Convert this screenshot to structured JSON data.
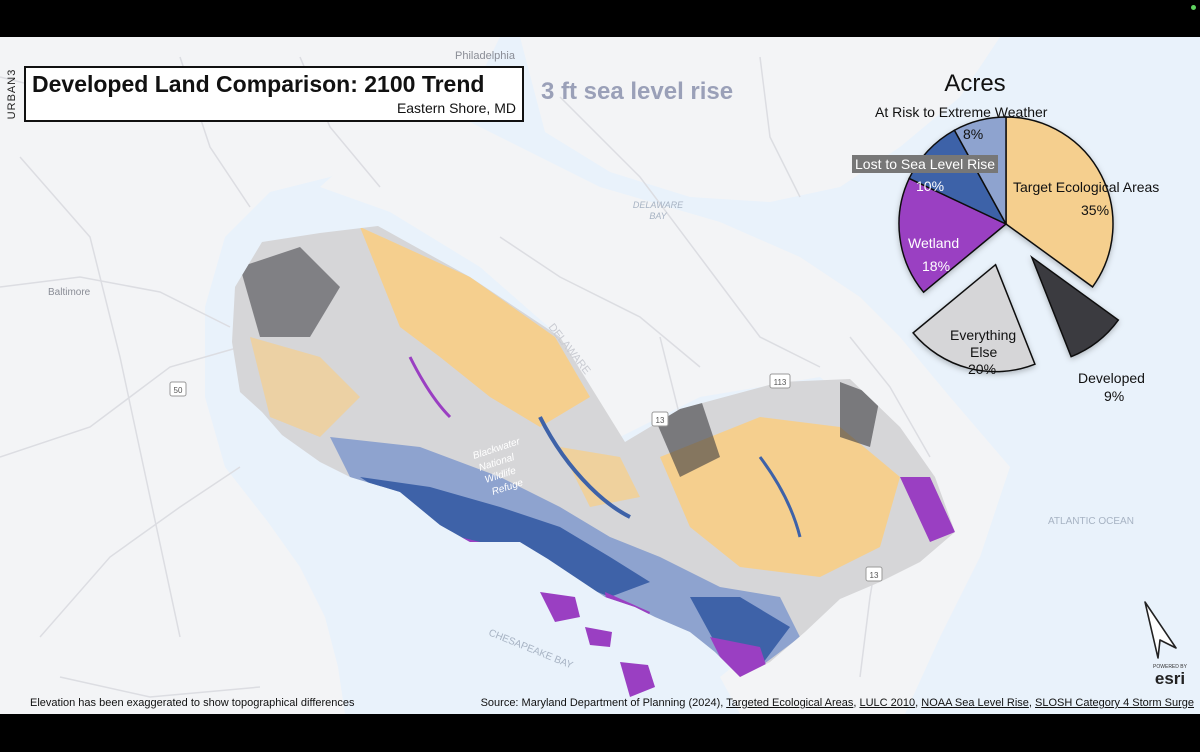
{
  "title": "Developed Land Comparison: 2100 Trend",
  "subtitle": "Eastern Shore, MD",
  "brand": "URBAN3",
  "scenario": "3 ft sea level rise",
  "map_labels": {
    "philadelphia": "Philadelphia",
    "baltimore": "Baltimore",
    "delaware_bay_1": "DELAWARE",
    "delaware_bay_2": "BAY",
    "delaware_state": "DELAWARE",
    "atlantic": "ATLANTIC OCEAN",
    "chesapeake": "CHESAPEAKE BAY",
    "refuge_1": "Blackwater",
    "refuge_2": "National",
    "refuge_3": "Wildlife",
    "refuge_4": "Refuge",
    "route_50": "50",
    "route_113": "113",
    "route_13a": "13",
    "route_13b": "13"
  },
  "chart_data": {
    "type": "pie",
    "title": "Acres",
    "slices": [
      {
        "label": "Target Ecological Areas",
        "value": 35,
        "display": "35%",
        "color": "#f5cf8e"
      },
      {
        "label": "Developed",
        "value": 9,
        "display": "9%",
        "color": "#3a3a40"
      },
      {
        "label": "Everything Else",
        "value": 20,
        "display": "20%",
        "color": "#d6d6d8"
      },
      {
        "label": "Wetland",
        "value": 18,
        "display": "18%",
        "color": "#9a3fc2"
      },
      {
        "label": "Lost to Sea Level Rise",
        "value": 10,
        "display": "10%",
        "color": "#3e62a8"
      },
      {
        "label": "At Risk to Extreme Weather",
        "value": 8,
        "display": "8%",
        "color": "#8ea3cf"
      }
    ],
    "exploded": [
      "Developed",
      "Everything Else"
    ]
  },
  "pie_labels": {
    "at_risk": "At Risk to Extreme Weather",
    "at_risk_pct": "8%",
    "lost": "Lost to Sea Level Rise",
    "lost_pct": "10%",
    "target": "Target Ecological Areas",
    "target_pct": "35%",
    "wetland": "Wetland",
    "wetland_pct": "18%",
    "everything_1": "Everything",
    "everything_2": "Else",
    "everything_pct": "20%",
    "developed": "Developed",
    "developed_pct": "9%"
  },
  "footer": {
    "note": "Elevation has been exaggerated to show topographical differences",
    "source_prefix": "Source: Maryland Department of Planning (2024), ",
    "source_1": "Targeted Ecological Areas",
    "source_2": "LULC 2010",
    "source_3": "NOAA Sea Level Rise",
    "source_4": "SLOSH Category 4 Storm Surge",
    "sep": ", "
  },
  "esri_logo": "esri",
  "esri_powered": "POWERED BY",
  "colors": {
    "water": "#e9f2fb",
    "land": "#f3f4f6",
    "target": "#f5cf8e",
    "developed": "#3a3a40",
    "wetland": "#9a3fc2",
    "lost": "#3e62a8",
    "at_risk": "#8ea3cf",
    "other": "#d6d6d8"
  }
}
